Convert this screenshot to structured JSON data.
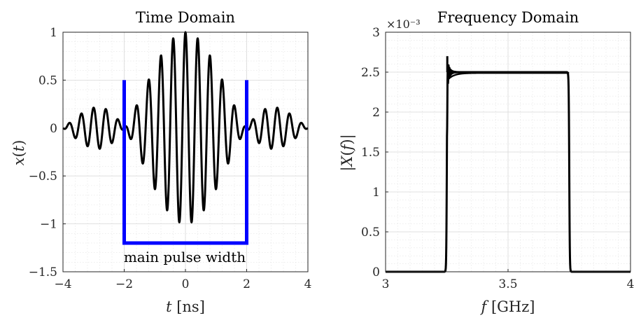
{
  "chart_data": [
    {
      "type": "line",
      "title": "Time Domain",
      "xlabel": "t [ns]",
      "ylabel": "x(t)",
      "xlim": [
        -4,
        4
      ],
      "ylim": [
        -1.5,
        1
      ],
      "xticks": [
        "−4",
        "−2",
        "0",
        "2",
        "4"
      ],
      "yticks": [
        "−1.5",
        "−1",
        "−0.5",
        "0",
        "0.5",
        "1"
      ],
      "grid": true,
      "series": [
        {
          "color": "#000000",
          "signal": "sinc-modulated chirp pulse, |x| peaks at 1 near t = 0",
          "peak": 1,
          "carrier_cycles_per_ns": 2.5,
          "envelope_main_lobe_ns": [
            -2,
            2
          ]
        }
      ],
      "annotations": [
        {
          "text": "main pulse width",
          "color": "#0000ff",
          "bracket_x": [
            -2,
            2
          ],
          "bracket_top_y": 0.5,
          "bracket_bottom_y": -1.2
        }
      ]
    },
    {
      "type": "line",
      "title": "Frequency Domain",
      "xlabel": "f [GHz]",
      "ylabel": "|X(f)|",
      "xlim": [
        3,
        4
      ],
      "ylim": [
        0,
        3
      ],
      "y_multiplier": "×10⁻³",
      "xticks": [
        "3",
        "3.5",
        "4"
      ],
      "yticks": [
        "0",
        "0.5",
        "1",
        "1.5",
        "2",
        "2.5",
        "3"
      ],
      "grid": true,
      "series": [
        {
          "color": "#000000",
          "passband_ghz": [
            3.25,
            3.75
          ],
          "plateau_value": 2.5,
          "edge_overshoot_value": 2.7
        }
      ]
    }
  ]
}
